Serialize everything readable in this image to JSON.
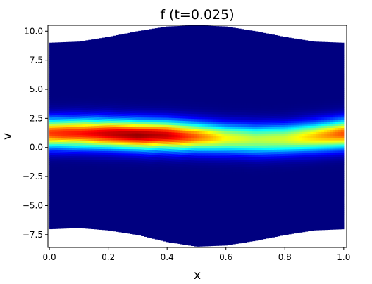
{
  "chart_data": {
    "type": "heatmap",
    "title": "f (t=0.025)",
    "xlabel": "x",
    "ylabel": "v",
    "xlim": [
      -0.005,
      1.01
    ],
    "ylim": [
      -8.6,
      10.5
    ],
    "xticks": [
      "0.0",
      "0.2",
      "0.4",
      "0.6",
      "0.8",
      "1.0"
    ],
    "xtick_values": [
      0.0,
      0.2,
      0.4,
      0.6,
      0.8,
      1.0
    ],
    "yticks": [
      "10.0",
      "7.5",
      "5.0",
      "2.5",
      "0.0",
      "−2.5",
      "−5.0",
      "−7.5"
    ],
    "ytick_values": [
      10.0,
      7.5,
      5.0,
      2.5,
      0.0,
      -2.5,
      -5.0,
      -7.5
    ],
    "colormap": "jet",
    "grid": false,
    "domain_boundary": {
      "x": [
        0.0,
        0.1,
        0.2,
        0.3,
        0.4,
        0.5,
        0.6,
        0.7,
        0.8,
        0.9,
        1.0
      ],
      "upper_v": [
        9.0,
        9.1,
        9.5,
        10.0,
        10.4,
        10.5,
        10.4,
        10.0,
        9.5,
        9.1,
        9.0
      ],
      "lower_v": [
        -7.0,
        -6.9,
        -7.1,
        -7.5,
        -8.1,
        -8.5,
        -8.4,
        -8.0,
        -7.5,
        -7.1,
        -7.0
      ]
    },
    "distribution": {
      "x": [
        0.0,
        0.1,
        0.2,
        0.3,
        0.4,
        0.5,
        0.6,
        0.7,
        0.8,
        0.9,
        1.0
      ],
      "center_v": [
        1.25,
        1.25,
        1.2,
        1.1,
        1.05,
        0.95,
        0.8,
        0.7,
        0.75,
        0.95,
        1.2
      ],
      "peak_value": [
        0.82,
        0.86,
        0.93,
        0.98,
        0.93,
        0.78,
        0.62,
        0.56,
        0.58,
        0.68,
        0.8
      ],
      "spread_v": 0.85
    },
    "background_value": 0.0
  }
}
